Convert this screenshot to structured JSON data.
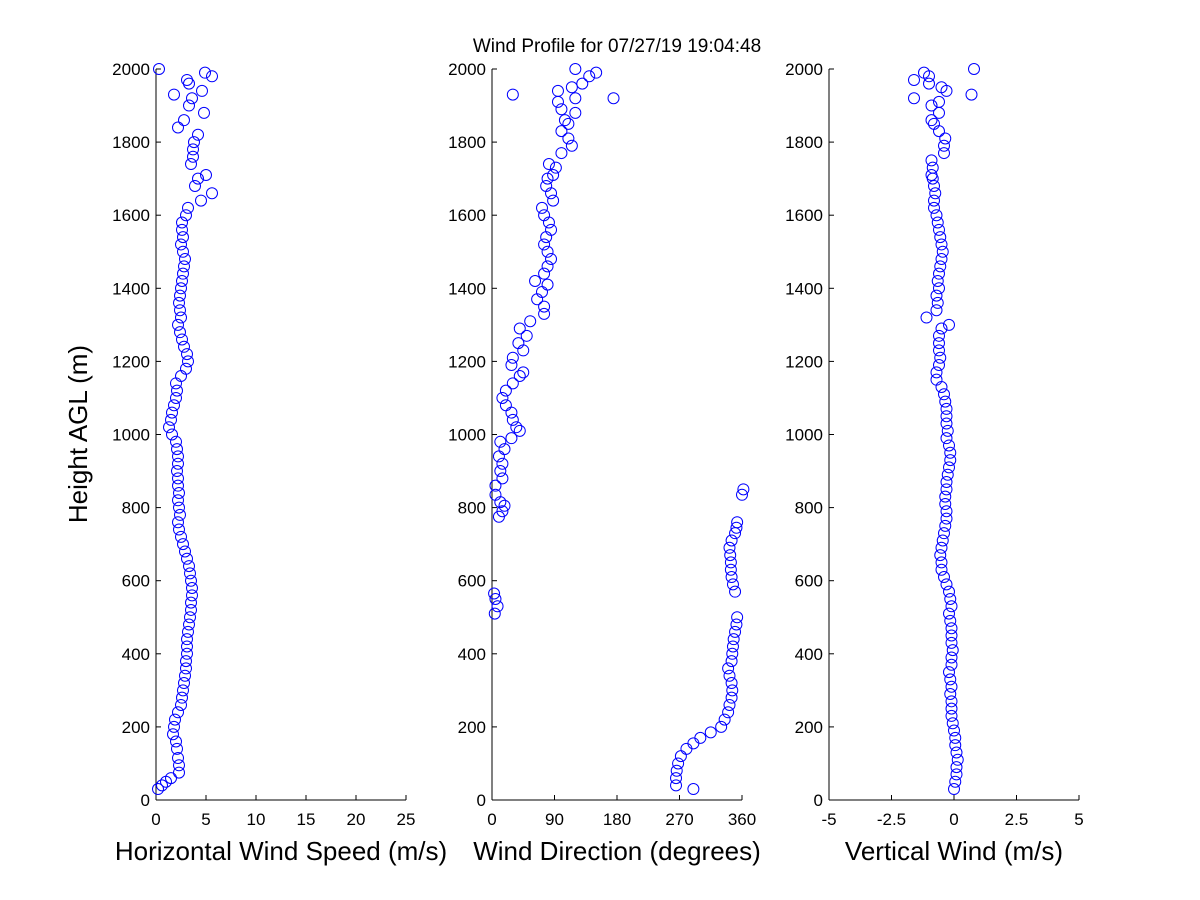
{
  "title": "Wind Profile for  07/27/19 19:04:48",
  "colors": {
    "marker": "#0000ff",
    "axes": "#000000",
    "background": "#ffffff"
  },
  "chart_data": [
    {
      "type": "scatter",
      "id": "speed",
      "xlabel": "Horizontal Wind Speed (m/s)",
      "ylabel": "Height AGL (m)",
      "xlim": [
        0,
        25
      ],
      "ylim": [
        0,
        2000
      ],
      "xticks": [
        "0",
        "5",
        "10",
        "15",
        "20",
        "25"
      ],
      "yticks": [
        "0",
        "200",
        "400",
        "600",
        "800",
        "1000",
        "1200",
        "1400",
        "1600",
        "1800",
        "2000"
      ],
      "marker": "circle-open",
      "points": [
        [
          0.2,
          30
        ],
        [
          0.6,
          40
        ],
        [
          1.0,
          50
        ],
        [
          1.5,
          60
        ],
        [
          2.3,
          75
        ],
        [
          2.3,
          95
        ],
        [
          2.2,
          115
        ],
        [
          2.1,
          140
        ],
        [
          2.0,
          160
        ],
        [
          1.7,
          180
        ],
        [
          1.8,
          200
        ],
        [
          1.9,
          220
        ],
        [
          2.2,
          240
        ],
        [
          2.5,
          260
        ],
        [
          2.6,
          280
        ],
        [
          2.7,
          300
        ],
        [
          2.8,
          320
        ],
        [
          2.9,
          340
        ],
        [
          3.0,
          360
        ],
        [
          3.0,
          380
        ],
        [
          3.1,
          400
        ],
        [
          3.1,
          420
        ],
        [
          3.1,
          440
        ],
        [
          3.2,
          460
        ],
        [
          3.3,
          480
        ],
        [
          3.4,
          500
        ],
        [
          3.5,
          520
        ],
        [
          3.5,
          540
        ],
        [
          3.6,
          560
        ],
        [
          3.6,
          580
        ],
        [
          3.5,
          600
        ],
        [
          3.4,
          620
        ],
        [
          3.3,
          640
        ],
        [
          3.1,
          660
        ],
        [
          2.9,
          680
        ],
        [
          2.7,
          700
        ],
        [
          2.5,
          720
        ],
        [
          2.3,
          740
        ],
        [
          2.2,
          760
        ],
        [
          2.4,
          780
        ],
        [
          2.3,
          800
        ],
        [
          2.2,
          820
        ],
        [
          2.3,
          840
        ],
        [
          2.2,
          860
        ],
        [
          2.2,
          880
        ],
        [
          2.1,
          900
        ],
        [
          2.2,
          920
        ],
        [
          2.2,
          940
        ],
        [
          2.1,
          960
        ],
        [
          2.0,
          980
        ],
        [
          1.6,
          1000
        ],
        [
          1.3,
          1020
        ],
        [
          1.5,
          1040
        ],
        [
          1.6,
          1060
        ],
        [
          1.8,
          1080
        ],
        [
          2.0,
          1100
        ],
        [
          2.1,
          1120
        ],
        [
          2.0,
          1140
        ],
        [
          2.5,
          1160
        ],
        [
          3.0,
          1180
        ],
        [
          3.2,
          1200
        ],
        [
          3.1,
          1220
        ],
        [
          2.8,
          1240
        ],
        [
          2.6,
          1260
        ],
        [
          2.4,
          1280
        ],
        [
          2.2,
          1300
        ],
        [
          2.5,
          1320
        ],
        [
          2.4,
          1340
        ],
        [
          2.3,
          1360
        ],
        [
          2.4,
          1380
        ],
        [
          2.5,
          1400
        ],
        [
          2.6,
          1420
        ],
        [
          2.7,
          1440
        ],
        [
          2.8,
          1460
        ],
        [
          2.9,
          1480
        ],
        [
          2.7,
          1500
        ],
        [
          2.5,
          1520
        ],
        [
          2.7,
          1540
        ],
        [
          2.6,
          1560
        ],
        [
          2.6,
          1580
        ],
        [
          3.0,
          1600
        ],
        [
          3.2,
          1620
        ],
        [
          4.5,
          1640
        ],
        [
          5.6,
          1660
        ],
        [
          3.9,
          1680
        ],
        [
          4.2,
          1700
        ],
        [
          5.0,
          1710
        ],
        [
          3.5,
          1740
        ],
        [
          3.7,
          1760
        ],
        [
          3.7,
          1780
        ],
        [
          3.8,
          1800
        ],
        [
          4.2,
          1820
        ],
        [
          2.2,
          1840
        ],
        [
          2.8,
          1860
        ],
        [
          4.8,
          1880
        ],
        [
          3.3,
          1900
        ],
        [
          3.6,
          1920
        ],
        [
          4.6,
          1940
        ],
        [
          3.3,
          1960
        ],
        [
          3.1,
          1970
        ],
        [
          5.6,
          1980
        ],
        [
          4.9,
          1990
        ],
        [
          0.3,
          2000
        ],
        [
          1.8,
          1930
        ]
      ]
    },
    {
      "type": "scatter",
      "id": "direction",
      "xlabel": "Wind Direction (degrees)",
      "ylabel": "",
      "xlim": [
        0,
        360
      ],
      "ylim": [
        0,
        2000
      ],
      "xticks": [
        "0",
        "90",
        "180",
        "270",
        "360"
      ],
      "yticks": [
        "0",
        "200",
        "400",
        "600",
        "800",
        "1000",
        "1200",
        "1400",
        "1600",
        "1800",
        "2000"
      ],
      "marker": "circle-open",
      "points": [
        [
          290,
          30
        ],
        [
          265,
          40
        ],
        [
          265,
          60
        ],
        [
          266,
          80
        ],
        [
          268,
          100
        ],
        [
          272,
          120
        ],
        [
          280,
          140
        ],
        [
          290,
          155
        ],
        [
          300,
          170
        ],
        [
          315,
          185
        ],
        [
          330,
          200
        ],
        [
          335,
          220
        ],
        [
          340,
          240
        ],
        [
          342,
          260
        ],
        [
          345,
          280
        ],
        [
          346,
          300
        ],
        [
          345,
          320
        ],
        [
          342,
          340
        ],
        [
          340,
          360
        ],
        [
          345,
          380
        ],
        [
          346,
          400
        ],
        [
          347,
          420
        ],
        [
          348,
          440
        ],
        [
          350,
          460
        ],
        [
          352,
          480
        ],
        [
          353,
          500
        ],
        [
          4,
          510
        ],
        [
          8,
          530
        ],
        [
          5,
          550
        ],
        [
          3,
          565
        ],
        [
          350,
          570
        ],
        [
          347,
          590
        ],
        [
          345,
          610
        ],
        [
          344,
          630
        ],
        [
          344,
          650
        ],
        [
          343,
          670
        ],
        [
          342,
          690
        ],
        [
          345,
          710
        ],
        [
          350,
          730
        ],
        [
          352,
          745
        ],
        [
          353,
          760
        ],
        [
          10,
          775
        ],
        [
          15,
          790
        ],
        [
          18,
          805
        ],
        [
          12,
          815
        ],
        [
          5,
          835
        ],
        [
          360,
          835
        ],
        [
          362,
          850
        ],
        [
          5,
          860
        ],
        [
          15,
          880
        ],
        [
          12,
          900
        ],
        [
          15,
          920
        ],
        [
          10,
          940
        ],
        [
          18,
          960
        ],
        [
          12,
          980
        ],
        [
          28,
          990
        ],
        [
          40,
          1010
        ],
        [
          35,
          1020
        ],
        [
          30,
          1040
        ],
        [
          28,
          1060
        ],
        [
          20,
          1080
        ],
        [
          15,
          1100
        ],
        [
          20,
          1120
        ],
        [
          30,
          1140
        ],
        [
          40,
          1160
        ],
        [
          45,
          1170
        ],
        [
          28,
          1190
        ],
        [
          30,
          1210
        ],
        [
          45,
          1230
        ],
        [
          38,
          1250
        ],
        [
          50,
          1270
        ],
        [
          40,
          1290
        ],
        [
          55,
          1310
        ],
        [
          75,
          1330
        ],
        [
          75,
          1350
        ],
        [
          65,
          1370
        ],
        [
          72,
          1390
        ],
        [
          80,
          1410
        ],
        [
          62,
          1420
        ],
        [
          75,
          1440
        ],
        [
          80,
          1460
        ],
        [
          85,
          1480
        ],
        [
          80,
          1500
        ],
        [
          75,
          1520
        ],
        [
          78,
          1540
        ],
        [
          85,
          1560
        ],
        [
          82,
          1580
        ],
        [
          75,
          1600
        ],
        [
          72,
          1620
        ],
        [
          88,
          1640
        ],
        [
          85,
          1660
        ],
        [
          78,
          1680
        ],
        [
          80,
          1700
        ],
        [
          88,
          1710
        ],
        [
          92,
          1730
        ],
        [
          82,
          1740
        ],
        [
          100,
          1770
        ],
        [
          115,
          1790
        ],
        [
          110,
          1810
        ],
        [
          100,
          1830
        ],
        [
          110,
          1850
        ],
        [
          105,
          1860
        ],
        [
          120,
          1880
        ],
        [
          100,
          1890
        ],
        [
          95,
          1910
        ],
        [
          120,
          1920
        ],
        [
          175,
          1920
        ],
        [
          30,
          1930
        ],
        [
          95,
          1940
        ],
        [
          115,
          1950
        ],
        [
          130,
          1960
        ],
        [
          140,
          1980
        ],
        [
          150,
          1990
        ],
        [
          120,
          2000
        ]
      ]
    },
    {
      "type": "scatter",
      "id": "vertical",
      "xlabel": "Vertical Wind (m/s)",
      "ylabel": "",
      "xlim": [
        -5,
        5
      ],
      "ylim": [
        0,
        2000
      ],
      "xticks": [
        "-5",
        "-2.5",
        "0",
        "2.5",
        "5"
      ],
      "yticks": [
        "0",
        "200",
        "400",
        "600",
        "800",
        "1000",
        "1200",
        "1400",
        "1600",
        "1800",
        "2000"
      ],
      "marker": "circle-open",
      "points": [
        [
          0.0,
          30
        ],
        [
          0.05,
          50
        ],
        [
          0.1,
          70
        ],
        [
          0.1,
          90
        ],
        [
          0.15,
          110
        ],
        [
          0.1,
          130
        ],
        [
          0.05,
          150
        ],
        [
          0.05,
          170
        ],
        [
          0.0,
          190
        ],
        [
          -0.05,
          210
        ],
        [
          -0.1,
          230
        ],
        [
          -0.1,
          250
        ],
        [
          -0.1,
          270
        ],
        [
          -0.15,
          290
        ],
        [
          -0.1,
          310
        ],
        [
          -0.15,
          330
        ],
        [
          -0.2,
          350
        ],
        [
          -0.1,
          370
        ],
        [
          -0.1,
          390
        ],
        [
          -0.05,
          410
        ],
        [
          -0.1,
          430
        ],
        [
          -0.1,
          450
        ],
        [
          -0.1,
          470
        ],
        [
          -0.15,
          490
        ],
        [
          -0.2,
          510
        ],
        [
          -0.1,
          530
        ],
        [
          -0.15,
          550
        ],
        [
          -0.2,
          570
        ],
        [
          -0.3,
          590
        ],
        [
          -0.4,
          610
        ],
        [
          -0.5,
          630
        ],
        [
          -0.5,
          650
        ],
        [
          -0.55,
          670
        ],
        [
          -0.5,
          690
        ],
        [
          -0.45,
          710
        ],
        [
          -0.4,
          730
        ],
        [
          -0.35,
          750
        ],
        [
          -0.3,
          770
        ],
        [
          -0.3,
          790
        ],
        [
          -0.35,
          810
        ],
        [
          -0.35,
          830
        ],
        [
          -0.3,
          850
        ],
        [
          -0.3,
          870
        ],
        [
          -0.25,
          890
        ],
        [
          -0.2,
          910
        ],
        [
          -0.15,
          930
        ],
        [
          -0.15,
          950
        ],
        [
          -0.2,
          970
        ],
        [
          -0.3,
          990
        ],
        [
          -0.25,
          1010
        ],
        [
          -0.3,
          1030
        ],
        [
          -0.3,
          1050
        ],
        [
          -0.3,
          1070
        ],
        [
          -0.35,
          1090
        ],
        [
          -0.4,
          1110
        ],
        [
          -0.5,
          1130
        ],
        [
          -0.7,
          1150
        ],
        [
          -0.7,
          1170
        ],
        [
          -0.6,
          1190
        ],
        [
          -0.55,
          1210
        ],
        [
          -0.6,
          1230
        ],
        [
          -0.6,
          1250
        ],
        [
          -0.6,
          1270
        ],
        [
          -0.5,
          1290
        ],
        [
          -0.2,
          1300
        ],
        [
          -1.1,
          1320
        ],
        [
          -0.7,
          1340
        ],
        [
          -0.65,
          1360
        ],
        [
          -0.7,
          1380
        ],
        [
          -0.6,
          1400
        ],
        [
          -0.65,
          1420
        ],
        [
          -0.6,
          1440
        ],
        [
          -0.55,
          1460
        ],
        [
          -0.5,
          1480
        ],
        [
          -0.45,
          1500
        ],
        [
          -0.5,
          1520
        ],
        [
          -0.55,
          1540
        ],
        [
          -0.6,
          1560
        ],
        [
          -0.65,
          1580
        ],
        [
          -0.7,
          1600
        ],
        [
          -0.8,
          1620
        ],
        [
          -0.8,
          1640
        ],
        [
          -0.75,
          1660
        ],
        [
          -0.8,
          1680
        ],
        [
          -0.85,
          1700
        ],
        [
          -0.9,
          1710
        ],
        [
          -0.85,
          1730
        ],
        [
          -0.9,
          1750
        ],
        [
          -0.4,
          1770
        ],
        [
          -0.4,
          1790
        ],
        [
          -0.35,
          1810
        ],
        [
          -0.6,
          1830
        ],
        [
          -0.8,
          1850
        ],
        [
          -0.9,
          1860
        ],
        [
          -0.6,
          1880
        ],
        [
          -0.9,
          1900
        ],
        [
          -0.6,
          1910
        ],
        [
          -1.6,
          1920
        ],
        [
          0.7,
          1930
        ],
        [
          -0.3,
          1940
        ],
        [
          -0.5,
          1950
        ],
        [
          -1.0,
          1960
        ],
        [
          -1.6,
          1970
        ],
        [
          -1.0,
          1980
        ],
        [
          -1.2,
          1990
        ],
        [
          0.8,
          2000
        ]
      ]
    }
  ]
}
